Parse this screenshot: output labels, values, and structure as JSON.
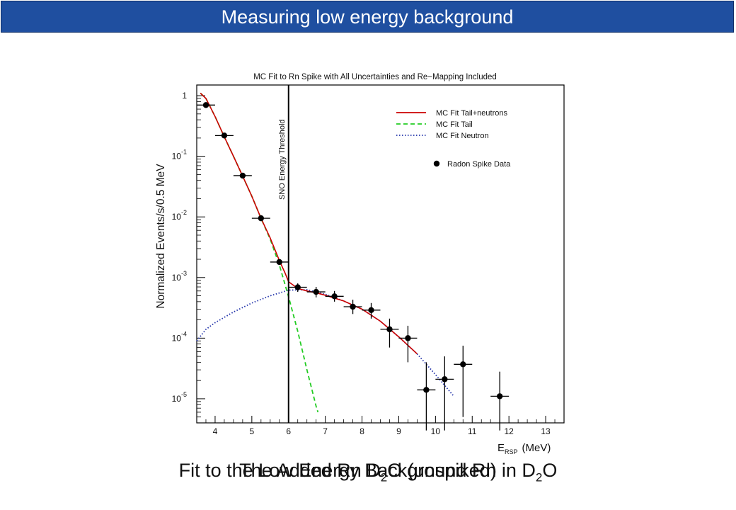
{
  "header": {
    "title": "Measuring low energy background"
  },
  "captions": [
    {
      "before": "Fit to the Low Energy Background Rn in D",
      "sub": "2",
      "after": "O"
    },
    {
      "before": "The Added Rn D",
      "sub": "2",
      "after": "O (unspiked)"
    }
  ],
  "colors": {
    "title_bg": "#1f4fa0",
    "tail_neutrons": "#cc0000",
    "tail": "#22cc22",
    "neutron": "#2233aa",
    "data": "#000000"
  },
  "chart_data": {
    "type": "line",
    "title": "MC Fit to Rn Spike with All Uncertainties and Re−Mapping Included",
    "ylabel": "Normalized Events/s/0.5 MeV",
    "xlabel_main": "E",
    "xlabel_sub": "RSP",
    "xlabel_unit": "(MeV)",
    "xlim": [
      3.5,
      13.5
    ],
    "ylim": [
      4e-06,
      1.5
    ],
    "log_y": true,
    "grid": false,
    "legend_position": "top-right",
    "x_ticks": [
      4,
      5,
      6,
      7,
      8,
      9,
      10,
      11,
      12,
      13
    ],
    "y_ticks": [
      {
        "value": 1,
        "base": "1",
        "exp": ""
      },
      {
        "value": 0.1,
        "base": "10",
        "exp": "-1"
      },
      {
        "value": 0.01,
        "base": "10",
        "exp": "-2"
      },
      {
        "value": 0.001,
        "base": "10",
        "exp": "-3"
      },
      {
        "value": 0.0001,
        "base": "10",
        "exp": "-4"
      },
      {
        "value": 1e-05,
        "base": "10",
        "exp": "-5"
      }
    ],
    "threshold": {
      "x": 6.0,
      "label": "SNO Energy Threshold"
    },
    "series": [
      {
        "name": "MC Fit Tail+neutrons",
        "style": "solid",
        "color": "#cc0000",
        "x": [
          3.6,
          3.75,
          4.0,
          4.25,
          4.5,
          4.75,
          5.0,
          5.25,
          5.5,
          5.75,
          5.9,
          6.0,
          6.25,
          6.5,
          6.75,
          7.0,
          7.5,
          8.0,
          8.5,
          9.0,
          9.5
        ],
        "y": [
          1.1,
          0.9,
          0.45,
          0.21,
          0.1,
          0.047,
          0.022,
          0.0095,
          0.0045,
          0.0019,
          0.0012,
          0.00085,
          0.00066,
          0.0006,
          0.00056,
          0.00051,
          0.00041,
          0.0003,
          0.00019,
          0.000105,
          5.5e-05
        ]
      },
      {
        "name": "MC Fit Tail",
        "style": "dashed",
        "color": "#22cc22",
        "x": [
          3.6,
          3.75,
          4.0,
          4.25,
          4.5,
          4.75,
          5.0,
          5.25,
          5.5,
          5.75,
          6.0,
          6.25,
          6.5,
          6.75,
          6.8
        ],
        "y": [
          1.1,
          0.9,
          0.45,
          0.21,
          0.1,
          0.047,
          0.022,
          0.0095,
          0.0043,
          0.0016,
          0.00048,
          0.00013,
          3e-05,
          7.5e-06,
          6e-06
        ]
      },
      {
        "name": "MC Fit Neutron",
        "style": "dotted",
        "color": "#2233aa",
        "x": [
          3.5,
          3.75,
          4.0,
          4.5,
          5.0,
          5.5,
          6.0,
          6.5,
          7.0,
          7.5,
          8.0,
          8.5,
          9.0,
          9.5,
          10.0,
          10.5
        ],
        "y": [
          9e-05,
          0.00014,
          0.00018,
          0.00027,
          0.00038,
          0.0005,
          0.00062,
          0.00063,
          0.00053,
          0.00041,
          0.0003,
          0.00019,
          0.000105,
          5.5e-05,
          2.5e-05,
          1.1e-05
        ]
      }
    ],
    "data_points": {
      "name": "Radon Spike Data",
      "color": "#000000",
      "points": [
        {
          "x": 3.75,
          "y": 0.7,
          "ylo": 0.7,
          "yhi": 0.7
        },
        {
          "x": 4.25,
          "y": 0.22,
          "ylo": 0.22,
          "yhi": 0.22
        },
        {
          "x": 4.75,
          "y": 0.048,
          "ylo": 0.048,
          "yhi": 0.048
        },
        {
          "x": 5.25,
          "y": 0.0095,
          "ylo": 0.0095,
          "yhi": 0.0095
        },
        {
          "x": 5.75,
          "y": 0.0018,
          "ylo": 0.0018,
          "yhi": 0.0018
        },
        {
          "x": 6.25,
          "y": 0.00069,
          "ylo": 0.00058,
          "yhi": 0.0008
        },
        {
          "x": 6.75,
          "y": 0.00058,
          "ylo": 0.00047,
          "yhi": 0.0007
        },
        {
          "x": 7.25,
          "y": 0.00049,
          "ylo": 0.0004,
          "yhi": 0.0006
        },
        {
          "x": 7.75,
          "y": 0.00033,
          "ylo": 0.00025,
          "yhi": 0.00043
        },
        {
          "x": 8.25,
          "y": 0.00029,
          "ylo": 0.00021,
          "yhi": 0.00038
        },
        {
          "x": 8.75,
          "y": 0.00014,
          "ylo": 7e-05,
          "yhi": 0.00021
        },
        {
          "x": 9.25,
          "y": 0.0001,
          "ylo": 4e-05,
          "yhi": 0.00016
        },
        {
          "x": 9.75,
          "y": 1.4e-05,
          "ylo": 3e-06,
          "yhi": 4e-05
        },
        {
          "x": 10.25,
          "y": 2.1e-05,
          "ylo": 3e-06,
          "yhi": 5e-05
        },
        {
          "x": 10.75,
          "y": 3.7e-05,
          "ylo": 5e-06,
          "yhi": 7.5e-05
        },
        {
          "x": 11.75,
          "y": 1.1e-05,
          "ylo": 3e-06,
          "yhi": 2.8e-05
        }
      ]
    }
  }
}
